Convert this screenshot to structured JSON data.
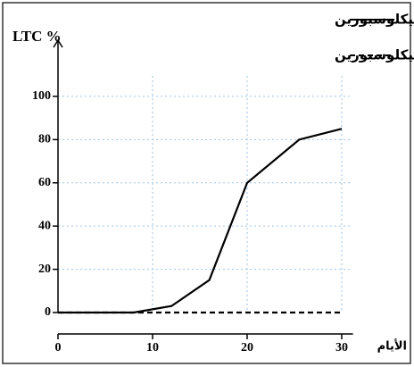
{
  "chart_data": {
    "type": "line",
    "ylabel": "LTC %",
    "xlabel": "الأيام",
    "xlim": [
      0,
      31
    ],
    "ylim": [
      0,
      126
    ],
    "xticks": [
      0,
      10,
      20,
      30
    ],
    "yticks": [
      0,
      20,
      40,
      60,
      80,
      100
    ],
    "grid": true,
    "grid_color": "#9ec3e6",
    "legend": "upper right",
    "series": [
      {
        "name": "في غياب السيكلوسبورين",
        "color": "#000000",
        "style": "solid",
        "x": [
          0,
          8,
          12,
          16,
          20,
          25.5,
          30
        ],
        "values": [
          0,
          0,
          3,
          15,
          60,
          80,
          85
        ]
      },
      {
        "name": "في وجود السيكلوسبورين",
        "color": "#000000",
        "style": "dashed",
        "x": [
          0,
          30
        ],
        "values": [
          0,
          0
        ]
      }
    ]
  }
}
